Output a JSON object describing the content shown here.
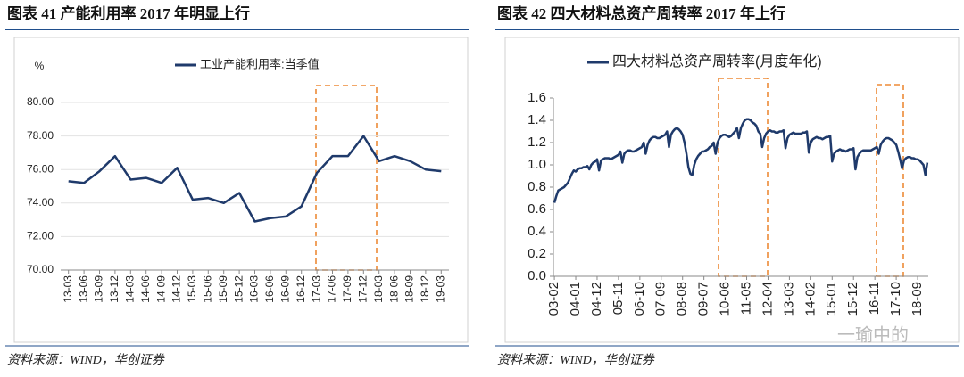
{
  "chart_data": [
    {
      "type": "line",
      "title": "图表 41 产能利用率 2017 年明显上行",
      "ylabel": "%",
      "source": "资料来源：WIND，华创证券",
      "grid": true,
      "categories": [
        "13-03",
        "13-06",
        "13-09",
        "13-12",
        "14-03",
        "14-06",
        "14-09",
        "14-12",
        "15-03",
        "15-06",
        "15-09",
        "15-12",
        "16-03",
        "16-06",
        "16-09",
        "16-12",
        "17-03",
        "17-06",
        "17-09",
        "17-12",
        "18-03",
        "18-06",
        "18-09",
        "18-12",
        "19-03"
      ],
      "series": [
        {
          "name": "工业产能利用率:当季值",
          "color": "#1f3a6b",
          "values": [
            75.3,
            75.2,
            75.9,
            76.8,
            75.4,
            75.5,
            75.2,
            76.1,
            74.2,
            74.3,
            74.0,
            74.6,
            72.9,
            73.1,
            73.2,
            73.8,
            75.8,
            76.8,
            76.8,
            78.0,
            76.5,
            76.8,
            76.5,
            76.0,
            75.9
          ]
        }
      ],
      "ylim": [
        70,
        80
      ],
      "yticks": [
        {
          "value": 70,
          "label": "70.00"
        },
        {
          "value": 72,
          "label": "72.00"
        },
        {
          "value": 74,
          "label": "74.00"
        },
        {
          "value": 76,
          "label": "76.00"
        },
        {
          "value": 78,
          "label": "78.00"
        },
        {
          "value": 80,
          "label": "80.00"
        }
      ]
    },
    {
      "type": "line",
      "title": "图表 42 四大材料总资产周转率 2017 年上行",
      "source": "资料来源：WIND，华创证券",
      "watermark": "一瑜中的",
      "grid": false,
      "categories": [
        "03-02",
        null,
        null,
        null,
        null,
        null,
        null,
        null,
        null,
        null,
        null,
        "04-01",
        null,
        null,
        null,
        null,
        null,
        null,
        null,
        null,
        null,
        null,
        "04-12",
        null,
        null,
        null,
        null,
        null,
        null,
        null,
        null,
        null,
        null,
        "05-11",
        null,
        null,
        null,
        null,
        null,
        null,
        null,
        null,
        null,
        null,
        "06-10",
        null,
        null,
        null,
        null,
        null,
        null,
        null,
        null,
        null,
        null,
        "07-09",
        null,
        null,
        null,
        null,
        null,
        null,
        null,
        null,
        null,
        null,
        "08-08",
        null,
        null,
        null,
        null,
        null,
        null,
        null,
        null,
        null,
        null,
        "09-07",
        null,
        null,
        null,
        null,
        null,
        null,
        null,
        null,
        null,
        null,
        "10-06",
        null,
        null,
        null,
        null,
        null,
        null,
        null,
        null,
        null,
        null,
        "11-05",
        null,
        null,
        null,
        null,
        null,
        null,
        null,
        null,
        null,
        null,
        "12-04",
        null,
        null,
        null,
        null,
        null,
        null,
        null,
        null,
        null,
        null,
        "13-03",
        null,
        null,
        null,
        null,
        null,
        null,
        null,
        null,
        null,
        null,
        "14-02",
        null,
        null,
        null,
        null,
        null,
        null,
        null,
        null,
        null,
        null,
        "15-01",
        null,
        null,
        null,
        null,
        null,
        null,
        null,
        null,
        null,
        null,
        "15-12",
        null,
        null,
        null,
        null,
        null,
        null,
        null,
        null,
        null,
        null,
        "16-11",
        null,
        null,
        null,
        null,
        null,
        null,
        null,
        null,
        null,
        null,
        "17-10",
        null,
        null,
        null,
        null,
        null,
        null,
        null,
        null,
        null,
        null,
        "18-09",
        null,
        null,
        null,
        null,
        null
      ],
      "series": [
        {
          "name": "四大材料总资产周转率(月度年化)",
          "color": "#1f3a6b",
          "values": [
            0.66,
            0.72,
            0.77,
            0.78,
            0.79,
            0.8,
            0.82,
            0.84,
            0.88,
            0.92,
            0.95,
            0.94,
            0.96,
            0.97,
            0.97,
            0.98,
            0.98,
            0.99,
            0.96,
            1.0,
            1.02,
            1.03,
            1.05,
            0.95,
            1.04,
            1.05,
            1.06,
            1.06,
            1.06,
            1.05,
            1.06,
            1.07,
            1.08,
            1.09,
            1.12,
            1.02,
            1.1,
            1.12,
            1.13,
            1.13,
            1.12,
            1.12,
            1.13,
            1.14,
            1.15,
            1.16,
            1.2,
            1.1,
            1.18,
            1.22,
            1.24,
            1.25,
            1.25,
            1.24,
            1.24,
            1.25,
            1.26,
            1.27,
            1.3,
            1.16,
            1.27,
            1.3,
            1.32,
            1.33,
            1.32,
            1.3,
            1.27,
            1.2,
            1.1,
            0.98,
            0.92,
            0.91,
            1.0,
            1.05,
            1.08,
            1.1,
            1.12,
            1.12,
            1.13,
            1.14,
            1.16,
            1.17,
            1.2,
            1.1,
            1.2,
            1.24,
            1.26,
            1.27,
            1.27,
            1.26,
            1.25,
            1.26,
            1.28,
            1.3,
            1.33,
            1.24,
            1.33,
            1.37,
            1.4,
            1.41,
            1.41,
            1.4,
            1.38,
            1.37,
            1.35,
            1.3,
            1.28,
            1.16,
            1.24,
            1.28,
            1.3,
            1.31,
            1.3,
            1.3,
            1.29,
            1.29,
            1.3,
            1.3,
            1.31,
            1.15,
            1.24,
            1.27,
            1.28,
            1.29,
            1.28,
            1.28,
            1.28,
            1.28,
            1.29,
            1.29,
            1.3,
            1.11,
            1.2,
            1.23,
            1.24,
            1.25,
            1.24,
            1.24,
            1.23,
            1.24,
            1.25,
            1.25,
            1.26,
            1.03,
            1.1,
            1.12,
            1.13,
            1.14,
            1.13,
            1.13,
            1.12,
            1.13,
            1.14,
            1.14,
            1.15,
            0.96,
            1.07,
            1.1,
            1.12,
            1.13,
            1.13,
            1.13,
            1.13,
            1.13,
            1.14,
            1.15,
            1.16,
            1.1,
            1.18,
            1.21,
            1.23,
            1.24,
            1.24,
            1.23,
            1.22,
            1.2,
            1.18,
            1.12,
            1.05,
            0.97,
            1.04,
            1.06,
            1.07,
            1.07,
            1.06,
            1.06,
            1.05,
            1.05,
            1.04,
            1.02,
            1.0,
            0.91,
            1.02
          ]
        }
      ],
      "ylim": [
        0,
        1.6
      ],
      "yticks": [
        {
          "value": 0,
          "label": "0.0"
        },
        {
          "value": 0.2,
          "label": "0.2"
        },
        {
          "value": 0.4,
          "label": "0.4"
        },
        {
          "value": 0.6,
          "label": "0.6"
        },
        {
          "value": 0.8,
          "label": "0.8"
        },
        {
          "value": 1.0,
          "label": "1.0"
        },
        {
          "value": 1.2,
          "label": "1.2"
        },
        {
          "value": 1.4,
          "label": "1.4"
        },
        {
          "value": 1.6,
          "label": "1.6"
        }
      ]
    }
  ]
}
